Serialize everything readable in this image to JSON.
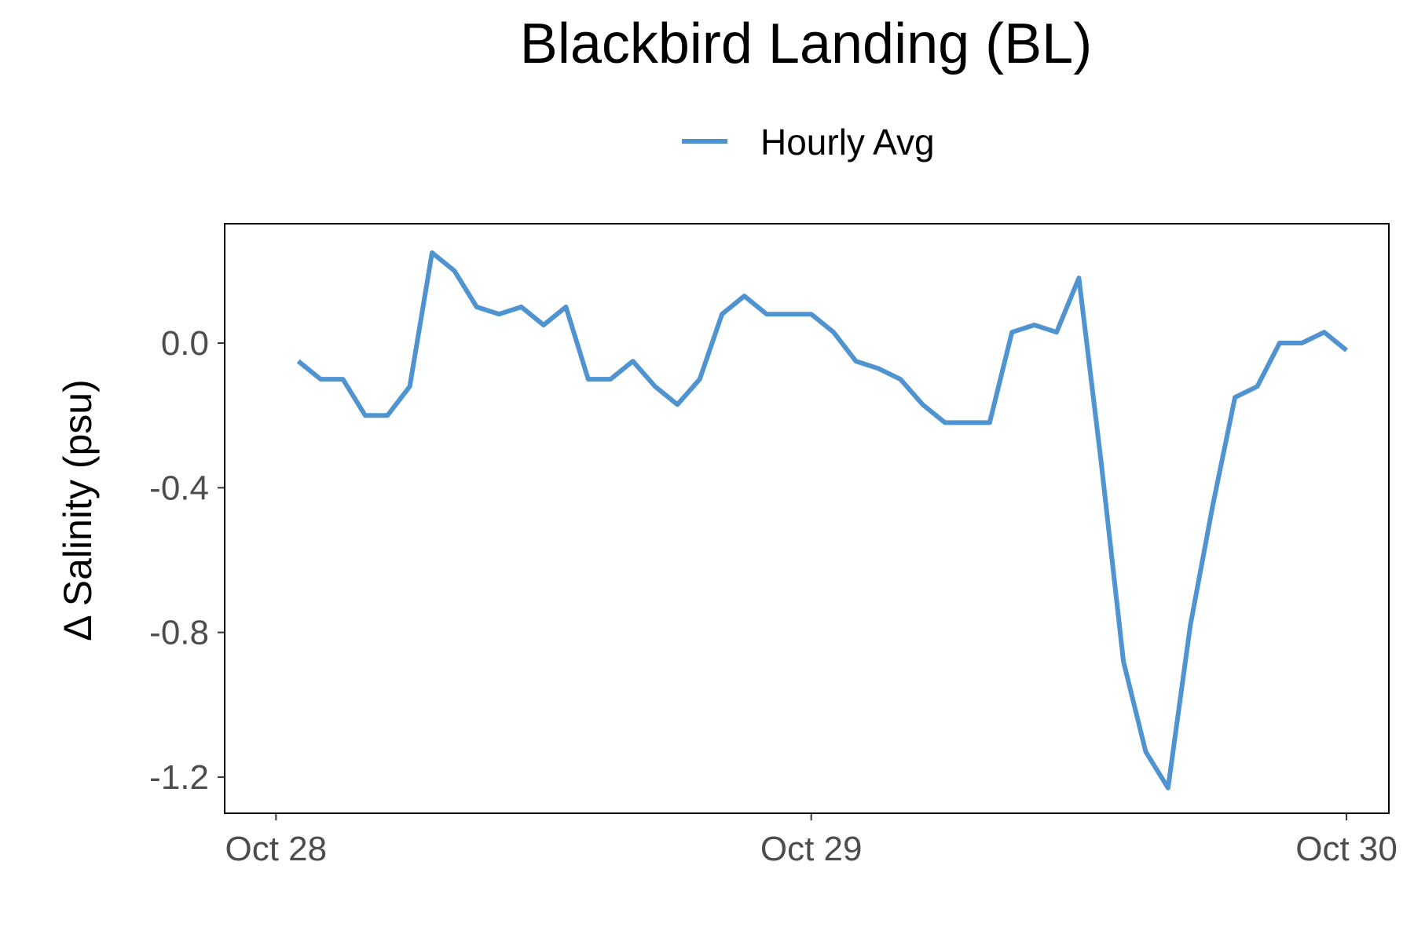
{
  "chart_data": {
    "type": "line",
    "title": "Blackbird Landing (BL)",
    "xlabel": "",
    "ylabel": "Δ Salinity (psu)",
    "x_ticks": [
      "Oct 28",
      "Oct 29",
      "Oct 30"
    ],
    "y_ticks": [
      "0.0",
      "-0.4",
      "-0.8",
      "-1.2"
    ],
    "y_tick_values": [
      0.0,
      -0.4,
      -0.8,
      -1.2
    ],
    "ylim": [
      -1.3,
      0.33
    ],
    "xlim_hours": [
      -2.3,
      49.9
    ],
    "legend": {
      "position": "top"
    },
    "grid": false,
    "series": [
      {
        "name": "Hourly Avg",
        "color": "#4f93d0",
        "x_hours": [
          1,
          2,
          3,
          4,
          5,
          6,
          7,
          8,
          9,
          10,
          11,
          12,
          13,
          14,
          15,
          16,
          17,
          18,
          19,
          20,
          21,
          22,
          23,
          24,
          25,
          26,
          27,
          28,
          29,
          30,
          31,
          32,
          33,
          34,
          35,
          36,
          37,
          38,
          39,
          40,
          41,
          42,
          43,
          44,
          45,
          46,
          47,
          48
        ],
        "values": [
          -0.05,
          -0.1,
          -0.1,
          -0.2,
          -0.2,
          -0.12,
          0.25,
          0.2,
          0.1,
          0.08,
          0.1,
          0.05,
          0.1,
          -0.1,
          -0.1,
          -0.05,
          -0.12,
          -0.17,
          -0.1,
          0.08,
          0.13,
          0.08,
          0.08,
          0.08,
          0.03,
          -0.05,
          -0.07,
          -0.1,
          -0.17,
          -0.22,
          -0.22,
          -0.22,
          0.03,
          0.05,
          0.03,
          0.18,
          -0.33,
          -0.88,
          -1.13,
          -1.23,
          -0.78,
          -0.45,
          -0.15,
          -0.12,
          0.0,
          0.0,
          0.03,
          -0.02
        ]
      }
    ]
  }
}
